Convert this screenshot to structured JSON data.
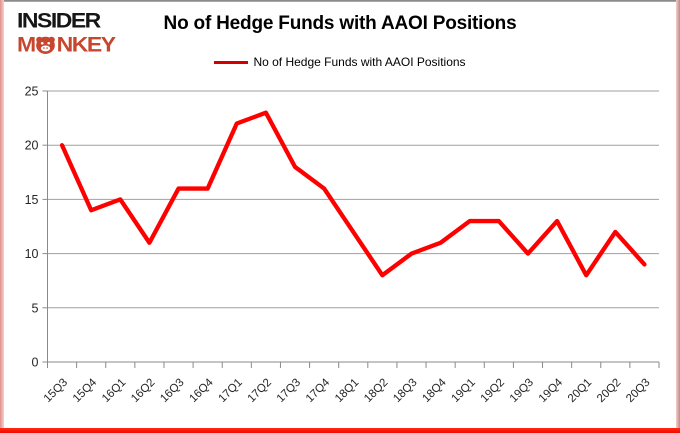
{
  "brand": {
    "line1": "INSIDER",
    "monkey_pre": "M",
    "monkey_post": "NKEY"
  },
  "header": {
    "title": "No of Hedge Funds with AAOI Positions"
  },
  "legend": {
    "label": "No of Hedge Funds with AAOI Positions",
    "marker_color": "#d40000"
  },
  "chart_data": {
    "type": "line",
    "title": "No of Hedge Funds with AAOI Positions",
    "categories": [
      "15Q3",
      "15Q4",
      "16Q1",
      "16Q2",
      "16Q3",
      "16Q4",
      "17Q1",
      "17Q2",
      "17Q3",
      "17Q4",
      "18Q1",
      "18Q2",
      "18Q3",
      "18Q4",
      "19Q1",
      "19Q2",
      "19Q3",
      "19Q4",
      "20Q1",
      "20Q2",
      "20Q3"
    ],
    "series": [
      {
        "name": "No of Hedge Funds with AAOI Positions",
        "color": "#fe0000",
        "values": [
          20,
          14,
          15,
          11,
          16,
          16,
          22,
          23,
          18,
          16,
          12,
          8,
          10,
          11,
          13,
          13,
          10,
          13,
          8,
          12,
          9
        ]
      }
    ],
    "ylim": [
      0,
      25
    ],
    "yticks": [
      0,
      5,
      10,
      15,
      20,
      25
    ],
    "grid": true,
    "legend_position": "top",
    "xlabel": "",
    "ylabel": "",
    "gridline_color": "#a0a0a0",
    "axis_color": "#8a8a8a",
    "tick_label_color": "#262626"
  }
}
